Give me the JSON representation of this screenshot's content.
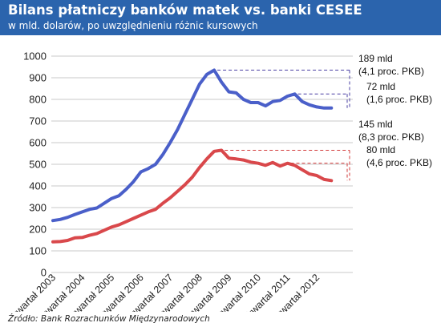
{
  "header": {
    "title": "Bilans płatniczy banków matek vs. banki CESEE",
    "subtitle": "w mld. dolarów, po uwzględnieniu różnic kursowych"
  },
  "source": "Źródło: Bank Rozrachunków Międzynarodowych",
  "colors": {
    "header_bg": "#2b64ad",
    "series_blue": "#4a5fc9",
    "series_red": "#d9484b",
    "bracket_blue": "#4a3fa3",
    "bracket_red": "#d23a3a"
  },
  "chart_data": {
    "type": "line",
    "ylim": [
      0,
      1000
    ],
    "yticks": [
      0,
      100,
      200,
      300,
      400,
      500,
      600,
      700,
      800,
      900,
      1000
    ],
    "grid": true,
    "xticks": [
      "I kwartał 2003",
      "I kwartał 2004",
      "I kwartał 2005",
      "I kwartał 2006",
      "I kwartał 2007",
      "I kwartał 2008",
      "I kwartał 2009",
      "I kwartał 2010",
      "I kwartał 2011",
      "I kwartał 2012"
    ],
    "x": [
      "I 2003",
      "II 2003",
      "III 2003",
      "IV 2003",
      "I 2004",
      "II 2004",
      "III 2004",
      "IV 2004",
      "I 2005",
      "II 2005",
      "III 2005",
      "IV 2005",
      "I 2006",
      "II 2006",
      "III 2006",
      "IV 2006",
      "I 2007",
      "II 2007",
      "III 2007",
      "IV 2007",
      "I 2008",
      "II 2008",
      "III 2008",
      "IV 2008",
      "I 2009",
      "II 2009",
      "III 2009",
      "IV 2009",
      "I 2010",
      "II 2010",
      "III 2010",
      "IV 2010",
      "I 2011",
      "II 2011",
      "III 2011",
      "IV 2011",
      "I 2012",
      "II 2012",
      "III 2012"
    ],
    "series": [
      {
        "color": "#4a5fc9",
        "values": [
          240,
          245,
          255,
          268,
          280,
          292,
          298,
          320,
          342,
          355,
          385,
          420,
          465,
          480,
          500,
          545,
          600,
          660,
          730,
          800,
          870,
          915,
          935,
          880,
          835,
          830,
          800,
          785,
          785,
          770,
          790,
          795,
          815,
          825,
          790,
          775,
          765,
          760,
          760
        ]
      },
      {
        "color": "#d9484b",
        "values": [
          142,
          143,
          148,
          160,
          162,
          172,
          180,
          195,
          210,
          220,
          235,
          250,
          265,
          280,
          292,
          320,
          345,
          375,
          405,
          440,
          485,
          525,
          560,
          565,
          528,
          525,
          520,
          510,
          505,
          495,
          508,
          492,
          505,
          495,
          475,
          455,
          448,
          430,
          425
        ]
      }
    ],
    "annotations": [
      {
        "value": "189 mld",
        "note": "(4,1 proc. PKB)"
      },
      {
        "value": "72 mld",
        "note": "(1,6 proc. PKB)"
      },
      {
        "value": "145 mld",
        "note": "(8,3 proc. PKB)"
      },
      {
        "value": "80 mld",
        "note": "(4,6 proc. PKB)"
      }
    ]
  }
}
